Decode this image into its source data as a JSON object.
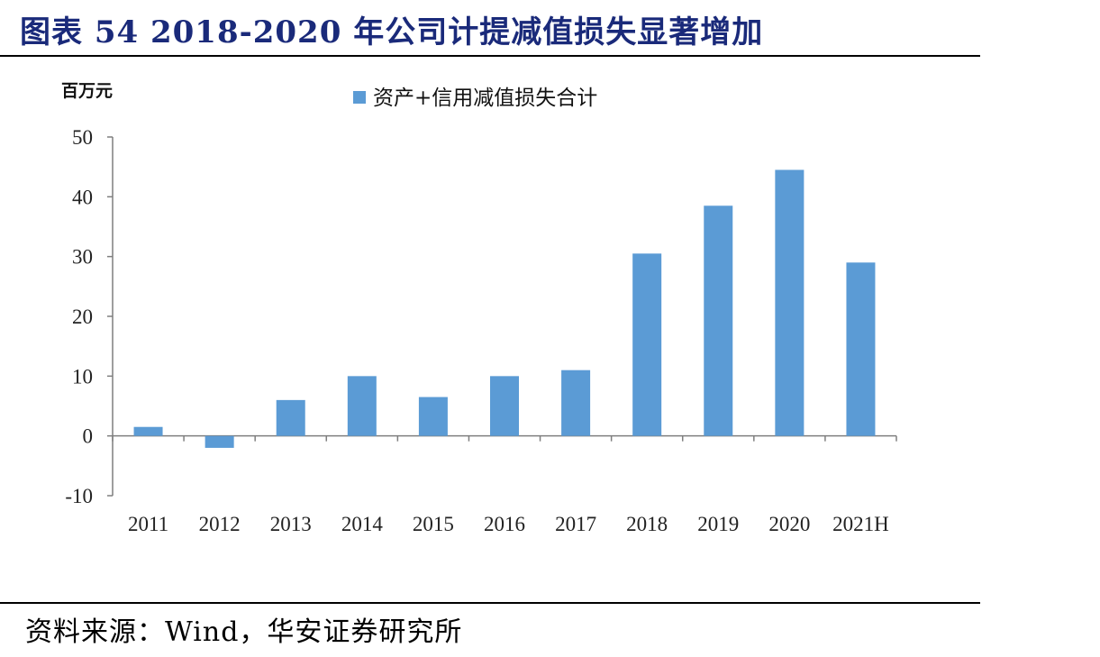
{
  "figure": {
    "title": "图表 54  2018-2020 年公司计提减值损失显著增加",
    "source": "资料来源：Wind，华安证券研究所"
  },
  "chart_data": {
    "type": "bar",
    "title": "",
    "unit_label": "百万元",
    "xlabel": "",
    "ylabel": "",
    "categories": [
      "2011",
      "2012",
      "2013",
      "2014",
      "2015",
      "2016",
      "2017",
      "2018",
      "2019",
      "2020",
      "2021H"
    ],
    "series": [
      {
        "name": "资产+信用减值损失合计",
        "values": [
          1.5,
          -2.0,
          6.0,
          10.0,
          6.5,
          10.0,
          11.0,
          30.5,
          38.5,
          44.5,
          29.0
        ],
        "color": "#5b9bd5"
      }
    ],
    "ylim": [
      -10,
      50
    ],
    "yticks": [
      "-10",
      "0",
      "10",
      "20",
      "30",
      "40",
      "50"
    ],
    "ytick_values": [
      -10,
      0,
      10,
      20,
      30,
      40,
      50
    ],
    "grid": false,
    "legend": "top-center"
  }
}
